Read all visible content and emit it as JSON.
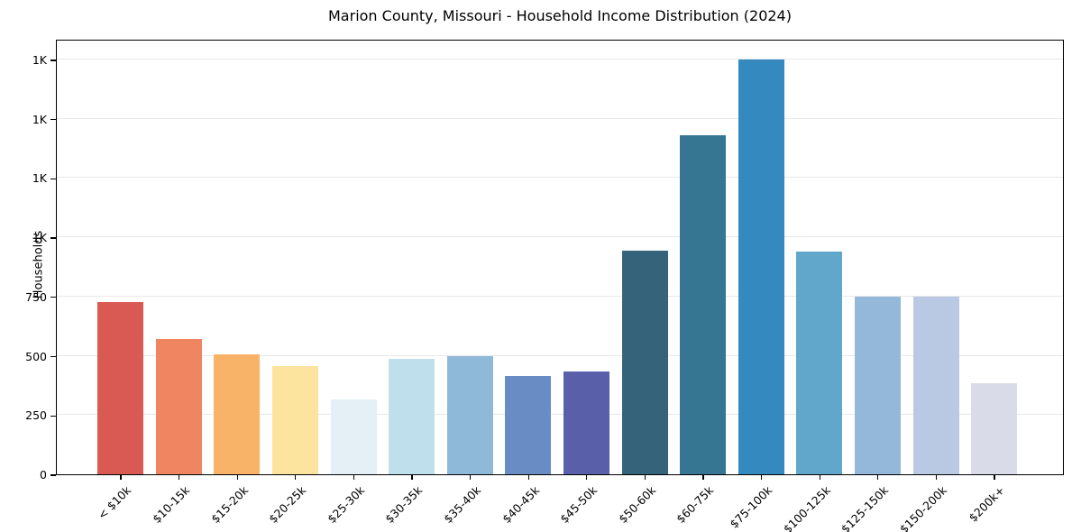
{
  "figure": {
    "background": "#ffffff",
    "plot_border_color": "#000000",
    "gridline_color": "#e7e7e7"
  },
  "chart_data": {
    "type": "bar",
    "title": "Marion County, Missouri - Household Income Distribution (2024)",
    "xlabel": "",
    "ylabel": "Households",
    "categories": [
      "< $10k",
      "$10-15k",
      "$15-20k",
      "$20-25k",
      "$25-30k",
      "$30-35k",
      "$35-40k",
      "$40-45k",
      "$45-50k",
      "$50-60k",
      "$60-75k",
      "$75-100k",
      "$100-125k",
      "$125-150k",
      "$150-200k",
      "$200k+"
    ],
    "values": [
      725,
      570,
      505,
      455,
      315,
      488,
      500,
      416,
      433,
      945,
      1430,
      1748,
      940,
      750,
      748,
      383
    ],
    "bar_colors": [
      "#d95a52",
      "#f08561",
      "#f9b369",
      "#fce39e",
      "#e4f0f6",
      "#c0dfec",
      "#8fb9d8",
      "#698cc4",
      "#5a5fa9",
      "#35647a",
      "#377693",
      "#348abf",
      "#61a7cb",
      "#93b8da",
      "#bac9e3",
      "#d9dbe9"
    ],
    "ylim": [
      0,
      1837
    ],
    "yticks": [
      {
        "value": 0,
        "label": "0"
      },
      {
        "value": 250,
        "label": "250"
      },
      {
        "value": 500,
        "label": "500"
      },
      {
        "value": 750,
        "label": "750"
      },
      {
        "value": 1000,
        "label": "1K"
      },
      {
        "value": 1250,
        "label": "1K"
      },
      {
        "value": 1500,
        "label": "1K"
      },
      {
        "value": 1750,
        "label": "1K"
      }
    ],
    "grid": "horizontal",
    "legend": "none"
  }
}
